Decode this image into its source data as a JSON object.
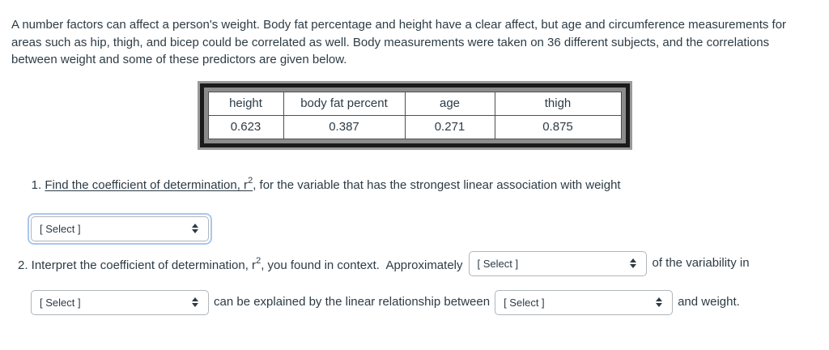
{
  "intro": {
    "text": "A number factors can affect a person's weight. Body fat percentage and height have a clear affect, but age and circumference measurements for areas such as hip, thigh, and bicep could be correlated as well. Body measurements were taken on 36 different subjects, and the correlations between weight and some of these predictors are given below."
  },
  "table": {
    "headers": [
      "height",
      "body fat percent",
      "age",
      "thigh"
    ],
    "values": [
      "0.623",
      "0.387",
      "0.271",
      "0.875"
    ]
  },
  "q1": {
    "prefix": "1. ",
    "underlined": "Find the coefficient of determination, r",
    "sup": "2",
    "rest": ", for the variable that has the strongest linear association with weight",
    "select_label": "[ Select ]"
  },
  "q2": {
    "part1": "2. Interpret the coefficient of determination, r",
    "sup": "2",
    "part2": ", you found in context.  Approximately",
    "select1_label": "[ Select ]",
    "part3": "of the variability in",
    "select2_label": "[ Select ]",
    "part4": "can be explained by the linear relationship between",
    "select3_label": "[ Select ]",
    "part5": "and weight."
  },
  "icons": {
    "select_arrows": "updown-arrows"
  },
  "colors": {
    "text": "#2d3b45",
    "focus_ring": "#a9c7ee",
    "table_border": "#1b1b1b",
    "table_frame": "#8c8c8c",
    "table_outline": "#9a9a9a",
    "select_border": "#b0b6ba"
  }
}
